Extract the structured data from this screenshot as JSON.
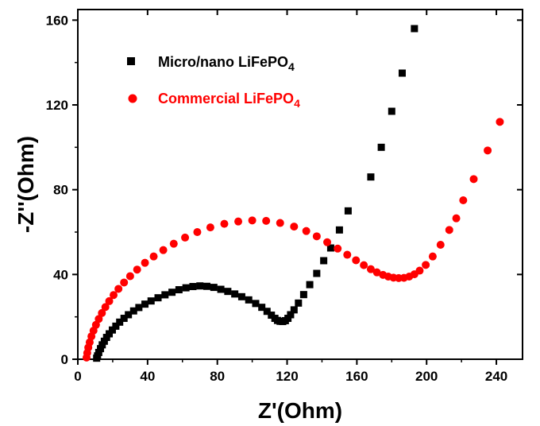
{
  "chart_data": {
    "type": "scatter",
    "xlabel": "Z'(Ohm)",
    "ylabel": "-Z''(Ohm)",
    "xlim": [
      0,
      255
    ],
    "ylim": [
      0,
      165
    ],
    "xticks": [
      "0",
      "40",
      "80",
      "120",
      "160",
      "200",
      "240"
    ],
    "yticks": [
      "0",
      "40",
      "80",
      "120",
      "160"
    ],
    "legend_position": "top-left",
    "series": [
      {
        "name": "Micro/nano LiFePO",
        "subscript": "4",
        "color": "#000000",
        "marker": "square",
        "points": [
          [
            10.8,
            0.5
          ],
          [
            11.3,
            1.6
          ],
          [
            12.0,
            3.2
          ],
          [
            13.0,
            5.0
          ],
          [
            14.0,
            6.8
          ],
          [
            15.2,
            8.5
          ],
          [
            16.5,
            10.3
          ],
          [
            18.0,
            12.0
          ],
          [
            19.8,
            13.8
          ],
          [
            21.8,
            15.6
          ],
          [
            24.0,
            17.5
          ],
          [
            26.5,
            19.3
          ],
          [
            29.0,
            21.0
          ],
          [
            32.0,
            22.8
          ],
          [
            35.0,
            24.4
          ],
          [
            38.5,
            26.0
          ],
          [
            42.0,
            27.5
          ],
          [
            46.0,
            29.0
          ],
          [
            50.0,
            30.4
          ],
          [
            54.0,
            31.6
          ],
          [
            58.0,
            32.8
          ],
          [
            62.0,
            33.7
          ],
          [
            66.0,
            34.3
          ],
          [
            70.0,
            34.6
          ],
          [
            74.0,
            34.4
          ],
          [
            78.0,
            33.9
          ],
          [
            82.0,
            33.0
          ],
          [
            86.0,
            32.0
          ],
          [
            90.0,
            30.8
          ],
          [
            94.0,
            29.5
          ],
          [
            98.0,
            28.0
          ],
          [
            102.0,
            26.3
          ],
          [
            105.5,
            24.5
          ],
          [
            108.5,
            22.6
          ],
          [
            111.0,
            20.8
          ],
          [
            113.0,
            19.3
          ],
          [
            114.5,
            18.3
          ],
          [
            116.0,
            17.9
          ],
          [
            117.5,
            17.8
          ],
          [
            119.0,
            18.2
          ],
          [
            120.5,
            19.3
          ],
          [
            122.0,
            21.0
          ],
          [
            124.0,
            23.3
          ],
          [
            126.5,
            26.5
          ],
          [
            129.5,
            30.5
          ],
          [
            133.0,
            35.2
          ],
          [
            137.0,
            40.5
          ],
          [
            141.0,
            46.5
          ],
          [
            145.0,
            52.5
          ],
          [
            150.0,
            61.0
          ],
          [
            155.0,
            70.0
          ],
          [
            168.0,
            86.0
          ],
          [
            174.0,
            100.0
          ],
          [
            180.0,
            117.0
          ],
          [
            186.0,
            135.0
          ],
          [
            193.0,
            156.0
          ]
        ]
      },
      {
        "name": "Commercial LiFePO",
        "subscript": "4",
        "color": "#ff0000",
        "marker": "circle",
        "points": [
          [
            5.0,
            0.8
          ],
          [
            5.4,
            3.0
          ],
          [
            6.0,
            5.5
          ],
          [
            6.8,
            8.0
          ],
          [
            7.8,
            10.8
          ],
          [
            9.0,
            13.5
          ],
          [
            10.4,
            16.2
          ],
          [
            12.0,
            19.0
          ],
          [
            13.8,
            21.8
          ],
          [
            15.8,
            24.6
          ],
          [
            18.0,
            27.4
          ],
          [
            20.5,
            30.3
          ],
          [
            23.3,
            33.2
          ],
          [
            26.5,
            36.2
          ],
          [
            30.0,
            39.2
          ],
          [
            34.0,
            42.3
          ],
          [
            38.5,
            45.5
          ],
          [
            43.5,
            48.5
          ],
          [
            49.0,
            51.5
          ],
          [
            55.0,
            54.5
          ],
          [
            61.5,
            57.4
          ],
          [
            68.5,
            60.0
          ],
          [
            76.0,
            62.2
          ],
          [
            84.0,
            63.9
          ],
          [
            92.0,
            65.0
          ],
          [
            100.0,
            65.5
          ],
          [
            108.0,
            65.3
          ],
          [
            116.0,
            64.3
          ],
          [
            124.0,
            62.6
          ],
          [
            131.0,
            60.5
          ],
          [
            137.0,
            58.0
          ],
          [
            143.0,
            55.2
          ],
          [
            149.0,
            52.2
          ],
          [
            154.5,
            49.3
          ],
          [
            159.5,
            46.7
          ],
          [
            164.0,
            44.4
          ],
          [
            168.0,
            42.5
          ],
          [
            171.5,
            41.0
          ],
          [
            175.0,
            39.8
          ],
          [
            178.0,
            39.0
          ],
          [
            181.0,
            38.5
          ],
          [
            184.0,
            38.3
          ],
          [
            187.0,
            38.4
          ],
          [
            190.0,
            39.0
          ],
          [
            193.0,
            40.1
          ],
          [
            196.0,
            41.8
          ],
          [
            199.5,
            44.5
          ],
          [
            203.5,
            48.5
          ],
          [
            208.0,
            54.0
          ],
          [
            213.0,
            61.0
          ],
          [
            217.0,
            66.5
          ],
          [
            221.0,
            75.0
          ],
          [
            227.0,
            85.0
          ],
          [
            235.0,
            98.5
          ],
          [
            242.0,
            112.0
          ]
        ]
      }
    ]
  }
}
